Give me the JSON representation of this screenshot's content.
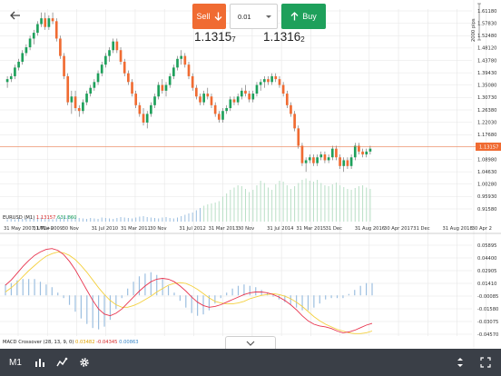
{
  "header": {
    "sell_label": "Sell",
    "buy_label": "Buy",
    "quantity_value": "0.01",
    "sell_price_main": "1.1315",
    "sell_price_pip": "7",
    "buy_price_main": "1.1316",
    "buy_price_pip": "2",
    "sell_color": "#f06b32",
    "buy_color": "#1ea05b"
  },
  "price_panel": {
    "legend_symbol": "EURUSD (M1)",
    "legend_value1": "1.13157",
    "legend_value2": "631.860",
    "pips_label": "2000 pips",
    "current_price_label": "1.13157",
    "current_price": 1.13157,
    "y_tick_labels": [
      "1.61180",
      "1.57830",
      "1.52480",
      "1.48120",
      "1.43780",
      "1.39430",
      "1.35080",
      "1.30730",
      "1.26380",
      "1.22030",
      "1.17680",
      "1.13157",
      "1.08980",
      "1.04630",
      "1.00280",
      "0.95930",
      "0.91580"
    ],
    "x_tick_labels": [
      "31 May 2007, UTC+0",
      "31 Mar 2009",
      "30 Nov",
      "31 Jul 2010",
      "31 Mar 2011",
      "30 Nov",
      "31 Jul 2012",
      "31 Mar 2013",
      "30 Nov",
      "31 Jul 2014",
      "31 Mar 2015",
      "31 Dec",
      "31 Aug 2016",
      "30 Apr 2017",
      "31 Dec",
      "31 Aug 2018",
      "30 Apr 2"
    ]
  },
  "macd_panel": {
    "legend_name": "MACD Crossover (28, 13, 9, 0)",
    "legend_v1": "0.03482",
    "legend_v2": "-0.04345",
    "legend_v3": "0.00863",
    "y_tick_labels": [
      "0.05895",
      "0.04400",
      "0.02905",
      "0.01410",
      "-0.00085",
      "-0.01580",
      "-0.03075",
      "-0.04570"
    ]
  },
  "chart_data": {
    "type": "candlestick",
    "symbol": "EURUSD",
    "ylim": [
      0.9158,
      1.6118
    ],
    "candles": [
      [
        1.36,
        1.38,
        1.34,
        1.37
      ],
      [
        1.37,
        1.39,
        1.36,
        1.38
      ],
      [
        1.38,
        1.42,
        1.37,
        1.41
      ],
      [
        1.41,
        1.44,
        1.4,
        1.43
      ],
      [
        1.43,
        1.47,
        1.42,
        1.46
      ],
      [
        1.46,
        1.49,
        1.45,
        1.48
      ],
      [
        1.48,
        1.52,
        1.47,
        1.51
      ],
      [
        1.51,
        1.54,
        1.49,
        1.53
      ],
      [
        1.53,
        1.57,
        1.52,
        1.56
      ],
      [
        1.56,
        1.6,
        1.55,
        1.58
      ],
      [
        1.58,
        1.6,
        1.54,
        1.55
      ],
      [
        1.55,
        1.59,
        1.54,
        1.58
      ],
      [
        1.58,
        1.6,
        1.56,
        1.57
      ],
      [
        1.57,
        1.58,
        1.5,
        1.51
      ],
      [
        1.51,
        1.52,
        1.44,
        1.45
      ],
      [
        1.45,
        1.46,
        1.37,
        1.38
      ],
      [
        1.38,
        1.39,
        1.28,
        1.29
      ],
      [
        1.29,
        1.33,
        1.25,
        1.31
      ],
      [
        1.31,
        1.33,
        1.26,
        1.27
      ],
      [
        1.27,
        1.28,
        1.24,
        1.26
      ],
      [
        1.26,
        1.3,
        1.25,
        1.29
      ],
      [
        1.29,
        1.33,
        1.28,
        1.32
      ],
      [
        1.32,
        1.35,
        1.31,
        1.34
      ],
      [
        1.34,
        1.37,
        1.33,
        1.36
      ],
      [
        1.36,
        1.4,
        1.35,
        1.39
      ],
      [
        1.39,
        1.43,
        1.38,
        1.42
      ],
      [
        1.42,
        1.46,
        1.41,
        1.45
      ],
      [
        1.45,
        1.48,
        1.43,
        1.47
      ],
      [
        1.47,
        1.51,
        1.46,
        1.5
      ],
      [
        1.5,
        1.51,
        1.46,
        1.47
      ],
      [
        1.47,
        1.48,
        1.42,
        1.43
      ],
      [
        1.43,
        1.44,
        1.38,
        1.39
      ],
      [
        1.39,
        1.4,
        1.35,
        1.36
      ],
      [
        1.36,
        1.37,
        1.31,
        1.32
      ],
      [
        1.32,
        1.33,
        1.27,
        1.28
      ],
      [
        1.28,
        1.29,
        1.24,
        1.25
      ],
      [
        1.25,
        1.27,
        1.21,
        1.22
      ],
      [
        1.22,
        1.26,
        1.2,
        1.25
      ],
      [
        1.25,
        1.29,
        1.24,
        1.28
      ],
      [
        1.28,
        1.32,
        1.27,
        1.31
      ],
      [
        1.31,
        1.36,
        1.3,
        1.35
      ],
      [
        1.35,
        1.37,
        1.32,
        1.33
      ],
      [
        1.33,
        1.36,
        1.31,
        1.35
      ],
      [
        1.35,
        1.39,
        1.34,
        1.38
      ],
      [
        1.38,
        1.42,
        1.37,
        1.41
      ],
      [
        1.41,
        1.45,
        1.4,
        1.44
      ],
      [
        1.44,
        1.47,
        1.42,
        1.45
      ],
      [
        1.45,
        1.46,
        1.41,
        1.42
      ],
      [
        1.42,
        1.43,
        1.37,
        1.38
      ],
      [
        1.38,
        1.39,
        1.33,
        1.34
      ],
      [
        1.34,
        1.35,
        1.3,
        1.31
      ],
      [
        1.31,
        1.32,
        1.28,
        1.29
      ],
      [
        1.29,
        1.33,
        1.28,
        1.32
      ],
      [
        1.32,
        1.34,
        1.3,
        1.31
      ],
      [
        1.31,
        1.32,
        1.27,
        1.28
      ],
      [
        1.28,
        1.29,
        1.24,
        1.25
      ],
      [
        1.25,
        1.26,
        1.22,
        1.23
      ],
      [
        1.23,
        1.27,
        1.22,
        1.26
      ],
      [
        1.26,
        1.28,
        1.25,
        1.27
      ],
      [
        1.27,
        1.31,
        1.26,
        1.3
      ],
      [
        1.3,
        1.31,
        1.28,
        1.29
      ],
      [
        1.29,
        1.32,
        1.28,
        1.31
      ],
      [
        1.31,
        1.34,
        1.3,
        1.33
      ],
      [
        1.33,
        1.35,
        1.31,
        1.32
      ],
      [
        1.32,
        1.33,
        1.29,
        1.3
      ],
      [
        1.3,
        1.33,
        1.29,
        1.32
      ],
      [
        1.32,
        1.36,
        1.31,
        1.35
      ],
      [
        1.35,
        1.37,
        1.33,
        1.36
      ],
      [
        1.36,
        1.38,
        1.34,
        1.37
      ],
      [
        1.37,
        1.38,
        1.35,
        1.36
      ],
      [
        1.36,
        1.39,
        1.35,
        1.38
      ],
      [
        1.38,
        1.39,
        1.36,
        1.37
      ],
      [
        1.37,
        1.38,
        1.34,
        1.35
      ],
      [
        1.35,
        1.36,
        1.31,
        1.32
      ],
      [
        1.32,
        1.33,
        1.27,
        1.28
      ],
      [
        1.28,
        1.29,
        1.24,
        1.25
      ],
      [
        1.25,
        1.26,
        1.19,
        1.2
      ],
      [
        1.2,
        1.21,
        1.13,
        1.14
      ],
      [
        1.14,
        1.15,
        1.07,
        1.08
      ],
      [
        1.08,
        1.1,
        1.05,
        1.09
      ],
      [
        1.09,
        1.11,
        1.08,
        1.1
      ],
      [
        1.1,
        1.11,
        1.07,
        1.08
      ],
      [
        1.08,
        1.11,
        1.07,
        1.1
      ],
      [
        1.1,
        1.12,
        1.09,
        1.11
      ],
      [
        1.11,
        1.12,
        1.08,
        1.09
      ],
      [
        1.09,
        1.11,
        1.08,
        1.1
      ],
      [
        1.1,
        1.14,
        1.09,
        1.13
      ],
      [
        1.13,
        1.14,
        1.09,
        1.1
      ],
      [
        1.1,
        1.11,
        1.06,
        1.07
      ],
      [
        1.07,
        1.1,
        1.05,
        1.09
      ],
      [
        1.09,
        1.1,
        1.06,
        1.07
      ],
      [
        1.07,
        1.11,
        1.06,
        1.1
      ],
      [
        1.1,
        1.15,
        1.09,
        1.14
      ],
      [
        1.14,
        1.15,
        1.11,
        1.12
      ],
      [
        1.12,
        1.13,
        1.1,
        1.11
      ],
      [
        1.11,
        1.13,
        1.1,
        1.12
      ],
      [
        1.12,
        1.14,
        1.11,
        1.13
      ]
    ],
    "volume": [
      0.05,
      0.06,
      0.05,
      0.07,
      0.06,
      0.08,
      0.07,
      0.06,
      0.08,
      0.09,
      0.07,
      0.06,
      0.05,
      0.08,
      0.1,
      0.12,
      0.14,
      0.11,
      0.09,
      0.08,
      0.07,
      0.06,
      0.08,
      0.07,
      0.06,
      0.09,
      0.08,
      0.07,
      0.06,
      0.08,
      0.1,
      0.09,
      0.08,
      0.07,
      0.09,
      0.11,
      0.12,
      0.1,
      0.09,
      0.08,
      0.07,
      0.09,
      0.1,
      0.08,
      0.07,
      0.09,
      0.12,
      0.15,
      0.18,
      0.2,
      0.25,
      0.3,
      0.35,
      0.38,
      0.4,
      0.42,
      0.45,
      0.55,
      0.62,
      0.7,
      0.75,
      0.8,
      0.78,
      0.72,
      0.65,
      0.7,
      0.8,
      0.9,
      0.85,
      0.75,
      0.7,
      0.82,
      0.9,
      0.88,
      0.8,
      0.72,
      0.78,
      0.85,
      0.92,
      0.95,
      0.9,
      0.88,
      0.92,
      0.85,
      0.8,
      0.78,
      0.82,
      0.86,
      0.8,
      0.76,
      0.72,
      0.7,
      0.74,
      0.78,
      0.8,
      0.75,
      0.72
    ],
    "macd": {
      "main": [
        0.012,
        0.018,
        0.026,
        0.034,
        0.041,
        0.047,
        0.051,
        0.054,
        0.055,
        0.053,
        0.048,
        0.04,
        0.03,
        0.018,
        0.006,
        -0.006,
        -0.016,
        -0.022,
        -0.024,
        -0.021,
        -0.016,
        -0.009,
        -0.002,
        0.005,
        0.011,
        0.016,
        0.019,
        0.02,
        0.019,
        0.016,
        0.011,
        0.005,
        -0.002,
        -0.008,
        -0.012,
        -0.014,
        -0.013,
        -0.011,
        -0.008,
        -0.005,
        -0.002,
        0.001,
        0.003,
        0.004,
        0.004,
        0.003,
        0.001,
        -0.002,
        -0.006,
        -0.011,
        -0.017,
        -0.024,
        -0.03,
        -0.034,
        -0.036,
        -0.037,
        -0.039,
        -0.042,
        -0.044,
        -0.043,
        -0.041,
        -0.038,
        -0.035,
        -0.033
      ],
      "signal": [
        0.004,
        0.009,
        0.015,
        0.022,
        0.029,
        0.035,
        0.041,
        0.046,
        0.049,
        0.051,
        0.05,
        0.047,
        0.042,
        0.035,
        0.027,
        0.018,
        0.009,
        0.001,
        -0.006,
        -0.011,
        -0.014,
        -0.014,
        -0.012,
        -0.009,
        -0.005,
        -0.001,
        0.004,
        0.008,
        0.012,
        0.014,
        0.015,
        0.014,
        0.011,
        0.007,
        0.002,
        -0.003,
        -0.007,
        -0.009,
        -0.01,
        -0.01,
        -0.009,
        -0.007,
        -0.004,
        -0.002,
        0.0,
        0.001,
        0.002,
        0.001,
        -0.001,
        -0.004,
        -0.008,
        -0.013,
        -0.019,
        -0.025,
        -0.03,
        -0.034,
        -0.037,
        -0.04,
        -0.042,
        -0.044,
        -0.045,
        -0.045,
        -0.044,
        -0.042
      ]
    }
  },
  "bottom_bar": {
    "timeframe_label": "M1",
    "bar_color": "#3a3f47"
  }
}
